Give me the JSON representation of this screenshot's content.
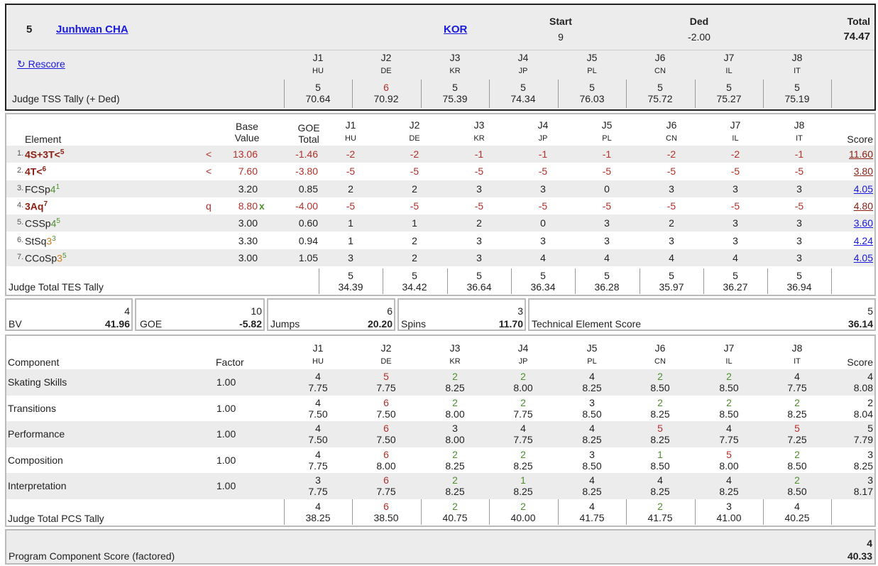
{
  "header": {
    "rank": "5",
    "name": "Junhwan CHA",
    "nation": "KOR",
    "start_label": "Start",
    "start": "9",
    "ded_label": "Ded",
    "ded": "-2.00",
    "total_label": "Total",
    "total": "74.47",
    "rescore": "↻ Rescore",
    "tally_label": "Judge TSS Tally (+ Ded)"
  },
  "judges": [
    {
      "id": "J1",
      "country": "HU"
    },
    {
      "id": "J2",
      "country": "DE"
    },
    {
      "id": "J3",
      "country": "KR"
    },
    {
      "id": "J4",
      "country": "JP"
    },
    {
      "id": "J5",
      "country": "PL"
    },
    {
      "id": "J6",
      "country": "CN"
    },
    {
      "id": "J7",
      "country": "IL"
    },
    {
      "id": "J8",
      "country": "IT"
    }
  ],
  "tss_tally": [
    {
      "rank": "5",
      "score": "70.64"
    },
    {
      "rank": "6",
      "score": "70.92"
    },
    {
      "rank": "5",
      "score": "75.39"
    },
    {
      "rank": "5",
      "score": "74.34"
    },
    {
      "rank": "5",
      "score": "76.03"
    },
    {
      "rank": "5",
      "score": "75.72"
    },
    {
      "rank": "5",
      "score": "75.27"
    },
    {
      "rank": "5",
      "score": "75.19"
    }
  ],
  "elements_header": {
    "element": "Element",
    "base1": "Base",
    "base2": "Value",
    "goe1": "GOE",
    "goe2": "Total",
    "score": "Score"
  },
  "elements": [
    {
      "num": "1.",
      "name": "4S+3T<",
      "sup": "5",
      "flag": "<",
      "bv": "13.06",
      "goe": "-1.46",
      "marks": [
        "-2",
        "-2",
        "-1",
        "-1",
        "-1",
        "-2",
        "-2",
        "-1"
      ],
      "score": "11.60"
    },
    {
      "num": "2.",
      "name": "4T<",
      "sup": "6",
      "flag": "<",
      "bv": "7.60",
      "goe": "-3.80",
      "marks": [
        "-5",
        "-5",
        "-5",
        "-5",
        "-5",
        "-5",
        "-5",
        "-5"
      ],
      "score": "3.80"
    },
    {
      "num": "3.",
      "name": "FCSp4",
      "sup": "1",
      "flag": "",
      "bv": "3.20",
      "goe": "0.85",
      "marks": [
        "2",
        "2",
        "3",
        "3",
        "0",
        "3",
        "3",
        "3"
      ],
      "score": "4.05"
    },
    {
      "num": "4.",
      "name": "3Aq",
      "sup": "7",
      "flag": "q",
      "bv": "8.80",
      "x": "x",
      "goe": "-4.00",
      "marks": [
        "-5",
        "-5",
        "-5",
        "-5",
        "-5",
        "-5",
        "-5",
        "-5"
      ],
      "score": "4.80"
    },
    {
      "num": "5.",
      "name": "CSSp4",
      "sup": "5",
      "flag": "",
      "bv": "3.00",
      "goe": "0.60",
      "marks": [
        "1",
        "1",
        "2",
        "0",
        "3",
        "2",
        "3",
        "3"
      ],
      "score": "3.60"
    },
    {
      "num": "6.",
      "name": "StSq3",
      "sup": "3",
      "flag": "",
      "bv": "3.30",
      "goe": "0.94",
      "marks": [
        "1",
        "2",
        "3",
        "3",
        "3",
        "3",
        "3",
        "3"
      ],
      "score": "4.24"
    },
    {
      "num": "7.",
      "name": "CCoSp3",
      "sup": "5",
      "flag": "",
      "bv": "3.00",
      "goe": "1.05",
      "marks": [
        "3",
        "2",
        "3",
        "4",
        "4",
        "4",
        "4",
        "3"
      ],
      "score": "4.05"
    }
  ],
  "tes_tally_label": "Judge Total TES Tally",
  "tes_tally": [
    {
      "rank": "5",
      "score": "34.39"
    },
    {
      "rank": "5",
      "score": "34.42"
    },
    {
      "rank": "5",
      "score": "36.64"
    },
    {
      "rank": "5",
      "score": "36.34"
    },
    {
      "rank": "5",
      "score": "36.28"
    },
    {
      "rank": "5",
      "score": "35.97"
    },
    {
      "rank": "5",
      "score": "36.27"
    },
    {
      "rank": "5",
      "score": "36.94"
    }
  ],
  "summary": {
    "bv": {
      "label": "BV",
      "rank": "4",
      "value": "41.96"
    },
    "goe": {
      "label": "GOE",
      "rank": "10",
      "value": "-5.82"
    },
    "jumps": {
      "label": "Jumps",
      "rank": "6",
      "value": "20.20"
    },
    "spins": {
      "label": "Spins",
      "rank": "3",
      "value": "11.70"
    },
    "tes": {
      "label": "Technical Element Score",
      "rank": "5",
      "value": "36.14"
    }
  },
  "components_header": {
    "component": "Component",
    "factor": "Factor",
    "score": "Score"
  },
  "components": [
    {
      "name": "Skating Skills",
      "factor": "1.00",
      "marks": [
        [
          "4",
          "7.75"
        ],
        [
          "5",
          "7.75"
        ],
        [
          "2",
          "8.25"
        ],
        [
          "2",
          "8.00"
        ],
        [
          "4",
          "8.25"
        ],
        [
          "2",
          "8.50"
        ],
        [
          "2",
          "8.50"
        ],
        [
          "4",
          "7.75"
        ]
      ],
      "rank": "4",
      "score": "8.08"
    },
    {
      "name": "Transitions",
      "factor": "1.00",
      "marks": [
        [
          "4",
          "7.50"
        ],
        [
          "6",
          "7.50"
        ],
        [
          "2",
          "8.00"
        ],
        [
          "2",
          "7.75"
        ],
        [
          "3",
          "8.50"
        ],
        [
          "2",
          "8.25"
        ],
        [
          "2",
          "8.50"
        ],
        [
          "2",
          "8.25"
        ]
      ],
      "rank": "2",
      "score": "8.04"
    },
    {
      "name": "Performance",
      "factor": "1.00",
      "marks": [
        [
          "4",
          "7.50"
        ],
        [
          "6",
          "7.50"
        ],
        [
          "3",
          "8.00"
        ],
        [
          "4",
          "7.75"
        ],
        [
          "4",
          "8.25"
        ],
        [
          "5",
          "8.25"
        ],
        [
          "4",
          "7.75"
        ],
        [
          "5",
          "7.25"
        ]
      ],
      "rank": "5",
      "score": "7.79"
    },
    {
      "name": "Composition",
      "factor": "1.00",
      "marks": [
        [
          "4",
          "7.75"
        ],
        [
          "6",
          "8.00"
        ],
        [
          "2",
          "8.25"
        ],
        [
          "2",
          "8.25"
        ],
        [
          "3",
          "8.50"
        ],
        [
          "1",
          "8.50"
        ],
        [
          "5",
          "8.00"
        ],
        [
          "2",
          "8.50"
        ]
      ],
      "rank": "3",
      "score": "8.25"
    },
    {
      "name": "Interpretation",
      "factor": "1.00",
      "marks": [
        [
          "3",
          "7.75"
        ],
        [
          "6",
          "7.75"
        ],
        [
          "2",
          "8.25"
        ],
        [
          "1",
          "8.25"
        ],
        [
          "4",
          "8.25"
        ],
        [
          "4",
          "8.25"
        ],
        [
          "4",
          "8.25"
        ],
        [
          "2",
          "8.50"
        ]
      ],
      "rank": "3",
      "score": "8.17"
    }
  ],
  "pcs_tally_label": "Judge Total PCS Tally",
  "pcs_tally": [
    {
      "rank": "4",
      "score": "38.25"
    },
    {
      "rank": "6",
      "score": "38.50"
    },
    {
      "rank": "2",
      "score": "40.75"
    },
    {
      "rank": "2",
      "score": "40.00"
    },
    {
      "rank": "4",
      "score": "41.75"
    },
    {
      "rank": "2",
      "score": "41.75"
    },
    {
      "rank": "3",
      "score": "41.00"
    },
    {
      "rank": "4",
      "score": "40.25"
    }
  ],
  "pcs_total": {
    "label": "Program Component Score (factored)",
    "rank": "4",
    "value": "40.33"
  },
  "colors": {
    "red": "#b5302a",
    "green": "#4f8f2f",
    "link": "#1a1adc",
    "shade": "#ececec"
  }
}
